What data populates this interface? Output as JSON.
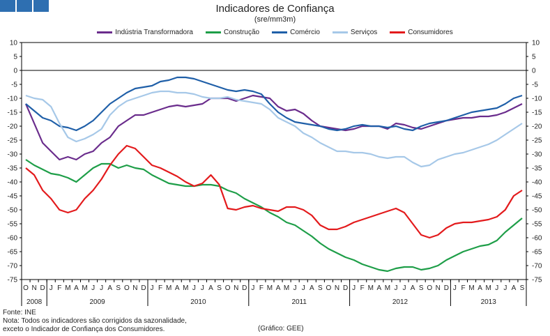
{
  "header": {
    "logo_icon": "three-blue-squares-logo"
  },
  "chart_data": {
    "type": "line",
    "title": "Indicadores de Confiança",
    "subtitle": "(sre/mm3m)",
    "ylim": [
      -75,
      10
    ],
    "yticks": [
      10,
      5,
      0,
      -5,
      -10,
      -15,
      -20,
      -25,
      -30,
      -35,
      -40,
      -45,
      -50,
      -55,
      -60,
      -65,
      -70,
      -75
    ],
    "x_months": [
      "O",
      "N",
      "D",
      "J",
      "F",
      "M",
      "A",
      "M",
      "J",
      "J",
      "A",
      "S",
      "O",
      "N",
      "D",
      "J",
      "F",
      "M",
      "A",
      "M",
      "J",
      "J",
      "A",
      "S",
      "O",
      "N",
      "D",
      "J",
      "F",
      "M",
      "A",
      "M",
      "J",
      "J",
      "A",
      "S",
      "O",
      "N",
      "D",
      "J",
      "F",
      "M",
      "A",
      "M",
      "J",
      "J",
      "A",
      "S",
      "O",
      "N",
      "D",
      "J",
      "F",
      "M",
      "A",
      "M",
      "J",
      "J",
      "A",
      "S"
    ],
    "years": [
      {
        "label": "2008",
        "start": 0,
        "count": 3
      },
      {
        "label": "2009",
        "start": 3,
        "count": 12
      },
      {
        "label": "2010",
        "start": 15,
        "count": 12
      },
      {
        "label": "2011",
        "start": 27,
        "count": 12
      },
      {
        "label": "2012",
        "start": 39,
        "count": 12
      },
      {
        "label": "2013",
        "start": 51,
        "count": 9
      }
    ],
    "series": [
      {
        "name": "Indústria Transformadora",
        "color": "#6a2c8c",
        "values": [
          -12,
          -19,
          -26,
          -29,
          -32,
          -31,
          -32,
          -30,
          -29,
          -26,
          -24,
          -20,
          -18,
          -16,
          -16,
          -15,
          -14,
          -13,
          -12.5,
          -13,
          -12.5,
          -12,
          -10,
          -10,
          -10,
          -11,
          -10,
          -9,
          -9.5,
          -10,
          -13,
          -14.5,
          -14,
          -15.5,
          -18,
          -20,
          -20.5,
          -21,
          -21.5,
          -21,
          -20,
          -20,
          -20,
          -21,
          -19,
          -19.5,
          -20.5,
          -21,
          -20,
          -19,
          -18,
          -17.5,
          -17,
          -17,
          -16.5,
          -16.5,
          -16,
          -15,
          -13.5,
          -12
        ]
      },
      {
        "name": "Construção",
        "color": "#1e9e48",
        "values": [
          -32,
          -34,
          -35.5,
          -37,
          -37.5,
          -38.5,
          -40,
          -37.5,
          -35,
          -33.5,
          -33.5,
          -35,
          -34,
          -35,
          -35.5,
          -37.5,
          -39,
          -40.5,
          -41,
          -41.5,
          -41.5,
          -41,
          -41,
          -41.5,
          -43,
          -44,
          -46,
          -47.5,
          -49,
          -51,
          -52.5,
          -54.5,
          -55.5,
          -57.5,
          -59.5,
          -62,
          -64,
          -65.5,
          -67,
          -68,
          -69.5,
          -70.5,
          -71.5,
          -72,
          -71,
          -70.5,
          -70.5,
          -71.5,
          -71,
          -70,
          -68,
          -66.5,
          -65,
          -64,
          -63,
          -62.5,
          -61,
          -58,
          -55.5,
          -53
        ]
      },
      {
        "name": "Comércio",
        "color": "#1f5fa8",
        "values": [
          -12,
          -14.5,
          -17,
          -18,
          -20,
          -20.5,
          -21.5,
          -20,
          -18,
          -15,
          -12,
          -10,
          -8,
          -6.5,
          -6,
          -5.5,
          -4,
          -3.5,
          -2.5,
          -2.5,
          -3,
          -4,
          -5,
          -6,
          -7,
          -7.5,
          -7,
          -7.5,
          -8.5,
          -12,
          -15,
          -17,
          -18.5,
          -19,
          -19.5,
          -20,
          -21,
          -21.5,
          -21,
          -20,
          -19.5,
          -20,
          -20,
          -20.5,
          -20,
          -21,
          -21.5,
          -20,
          -19,
          -18.5,
          -18,
          -17,
          -16,
          -15,
          -14.5,
          -14,
          -13.5,
          -12,
          -10,
          -9
        ]
      },
      {
        "name": "Serviços",
        "color": "#a6c8e8",
        "values": [
          -9,
          -10,
          -10.5,
          -13,
          -19,
          -24,
          -25.5,
          -24.5,
          -23,
          -21,
          -16,
          -13,
          -11,
          -10,
          -9,
          -8,
          -7.5,
          -7.5,
          -8,
          -8,
          -8.5,
          -9.5,
          -10,
          -10,
          -9.5,
          -10.5,
          -11,
          -11.5,
          -12,
          -14,
          -17,
          -18.5,
          -20,
          -22.5,
          -24,
          -26,
          -27.5,
          -29,
          -29,
          -29.5,
          -29.5,
          -30,
          -31,
          -31.5,
          -31,
          -31,
          -33,
          -34.5,
          -34,
          -32,
          -31,
          -30,
          -29.5,
          -28.5,
          -27.5,
          -26.5,
          -25,
          -23,
          -21,
          -19
        ]
      },
      {
        "name": "Consumidores",
        "color": "#e31a1c",
        "values": [
          -35,
          -37.5,
          -43,
          -46,
          -50,
          -51,
          -50,
          -46,
          -43,
          -39,
          -34,
          -30,
          -27,
          -28,
          -31,
          -34,
          -35,
          -36.5,
          -38,
          -40,
          -41.5,
          -40.5,
          -37.5,
          -41,
          -49.5,
          -50,
          -49,
          -48.5,
          -49.5,
          -50,
          -50.5,
          -49,
          -49,
          -50,
          -52,
          -55.5,
          -57,
          -57,
          -56,
          -54.5,
          -53.5,
          -52.5,
          -51.5,
          -50.5,
          -49.5,
          -51,
          -55,
          -59,
          -60,
          -59,
          -56.5,
          -55,
          -54.5,
          -54.5,
          -54,
          -53.5,
          -52.5,
          -50,
          -45,
          -43
        ]
      }
    ]
  },
  "footer": {
    "source": "Fonte: INE",
    "note_line1": "Nota: Todos os indicadores são corrigidos da sazonalidade,",
    "note_line2": "exceto o Indicador de Confiança dos Consumidores.",
    "credit": "(Gráfico: GEE)"
  }
}
